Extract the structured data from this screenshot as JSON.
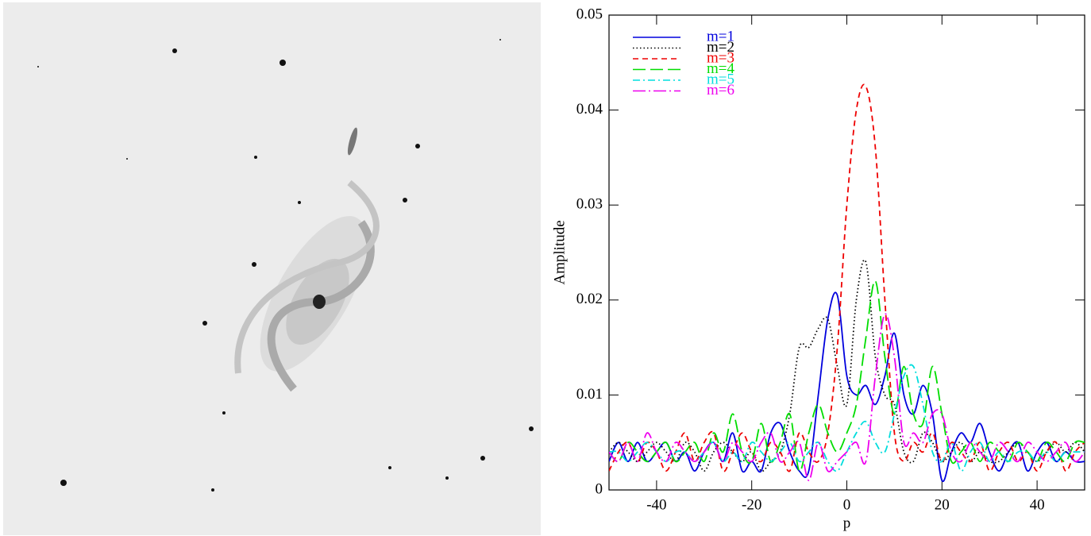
{
  "chart_data": {
    "type": "line",
    "xlabel": "p",
    "ylabel": "Amplitude",
    "xlim": [
      -50,
      50
    ],
    "ylim": [
      0,
      0.05
    ],
    "xticks": [
      -40,
      -20,
      0,
      20,
      40
    ],
    "yticks": [
      0,
      0.01,
      0.02,
      0.03,
      0.04,
      0.05
    ],
    "legend": "upper left",
    "x": [
      -50,
      -48,
      -46,
      -44,
      -42,
      -40,
      -38,
      -36,
      -34,
      -32,
      -30,
      -28,
      -26,
      -24,
      -22,
      -20,
      -18,
      -16,
      -14,
      -12,
      -10,
      -8,
      -6,
      -4,
      -2,
      0,
      2,
      4,
      6,
      8,
      10,
      12,
      14,
      16,
      18,
      20,
      22,
      24,
      26,
      28,
      30,
      32,
      34,
      36,
      38,
      40,
      42,
      44,
      46,
      48,
      50
    ],
    "series": [
      {
        "name": "m=1",
        "color": "#0000dd",
        "dash": "solid",
        "values": [
          0.003,
          0.005,
          0.003,
          0.005,
          0.003,
          0.004,
          0.005,
          0.003,
          0.004,
          0.002,
          0.004,
          0.005,
          0.003,
          0.006,
          0.002,
          0.003,
          0.002,
          0.006,
          0.007,
          0.004,
          0.002,
          0.002,
          0.01,
          0.018,
          0.0205,
          0.012,
          0.01,
          0.011,
          0.009,
          0.012,
          0.0165,
          0.01,
          0.008,
          0.011,
          0.008,
          0.001,
          0.004,
          0.006,
          0.005,
          0.007,
          0.004,
          0.002,
          0.004,
          0.005,
          0.002,
          0.004,
          0.005,
          0.003,
          0.004,
          0.003,
          0.003
        ]
      },
      {
        "name": "m=2",
        "color": "#000000",
        "dash": "dotted",
        "values": [
          0.004,
          0.005,
          0.004,
          0.003,
          0.004,
          0.005,
          0.004,
          0.003,
          0.005,
          0.004,
          0.002,
          0.004,
          0.005,
          0.004,
          0.003,
          0.004,
          0.002,
          0.003,
          0.004,
          0.008,
          0.015,
          0.015,
          0.017,
          0.018,
          0.013,
          0.009,
          0.02,
          0.024,
          0.014,
          0.01,
          0.009,
          0.004,
          0.003,
          0.006,
          0.005,
          0.003,
          0.004,
          0.005,
          0.003,
          0.004,
          0.003,
          0.003,
          0.004,
          0.005,
          0.004,
          0.003,
          0.004,
          0.005,
          0.004,
          0.005,
          0.004
        ]
      },
      {
        "name": "m=3",
        "color": "#ee0000",
        "dash": "dashed",
        "values": [
          0.002,
          0.004,
          0.005,
          0.003,
          0.005,
          0.004,
          0.002,
          0.004,
          0.006,
          0.003,
          0.005,
          0.006,
          0.002,
          0.004,
          0.006,
          0.004,
          0.003,
          0.005,
          0.004,
          0.002,
          0.006,
          0.004,
          0.003,
          0.006,
          0.015,
          0.03,
          0.04,
          0.0425,
          0.036,
          0.02,
          0.006,
          0.003,
          0.005,
          0.004,
          0.006,
          0.003,
          0.005,
          0.004,
          0.003,
          0.005,
          0.002,
          0.004,
          0.005,
          0.003,
          0.004,
          0.002,
          0.004,
          0.005,
          0.002,
          0.004,
          0.005
        ]
      },
      {
        "name": "m=4",
        "color": "#00dd00",
        "dash": "long-dashed",
        "values": [
          0.004,
          0.003,
          0.005,
          0.004,
          0.003,
          0.004,
          0.005,
          0.003,
          0.004,
          0.005,
          0.003,
          0.006,
          0.004,
          0.008,
          0.004,
          0.003,
          0.007,
          0.003,
          0.005,
          0.008,
          0.002,
          0.006,
          0.009,
          0.006,
          0.004,
          0.006,
          0.009,
          0.016,
          0.022,
          0.014,
          0.008,
          0.013,
          0.008,
          0.007,
          0.013,
          0.008,
          0.003,
          0.004,
          0.005,
          0.003,
          0.005,
          0.004,
          0.003,
          0.005,
          0.004,
          0.003,
          0.005,
          0.004,
          0.003,
          0.005,
          0.005
        ]
      },
      {
        "name": "m=5",
        "color": "#00dddd",
        "dash": "dash-dot",
        "values": [
          0.004,
          0.004,
          0.003,
          0.004,
          0.005,
          0.004,
          0.003,
          0.004,
          0.004,
          0.003,
          0.004,
          0.005,
          0.003,
          0.004,
          0.003,
          0.005,
          0.004,
          0.003,
          0.004,
          0.005,
          0.003,
          0.004,
          0.005,
          0.003,
          0.002,
          0.004,
          0.006,
          0.0072,
          0.005,
          0.004,
          0.008,
          0.012,
          0.013,
          0.009,
          0.004,
          0.003,
          0.005,
          0.002,
          0.004,
          0.005,
          0.003,
          0.004,
          0.003,
          0.004,
          0.004,
          0.003,
          0.004,
          0.003,
          0.004,
          0.004,
          0.004
        ]
      },
      {
        "name": "m=6",
        "color": "#ee00ee",
        "dash": "long-dash-dot",
        "values": [
          0.004,
          0.003,
          0.005,
          0.003,
          0.006,
          0.004,
          0.003,
          0.005,
          0.004,
          0.003,
          0.004,
          0.005,
          0.003,
          0.005,
          0.004,
          0.003,
          0.005,
          0.006,
          0.003,
          0.004,
          0.005,
          0.001,
          0.005,
          0.002,
          0.003,
          0.004,
          0.005,
          0.003,
          0.012,
          0.0185,
          0.014,
          0.005,
          0.006,
          0.005,
          0.008,
          0.008,
          0.004,
          0.003,
          0.005,
          0.004,
          0.003,
          0.005,
          0.004,
          0.003,
          0.005,
          0.004,
          0.003,
          0.004,
          0.005,
          0.003,
          0.004
        ]
      }
    ]
  }
}
